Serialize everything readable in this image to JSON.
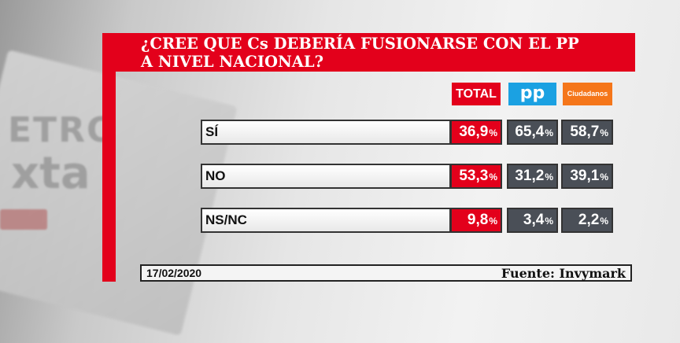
{
  "title": {
    "line1": "¿CREE QUE Cs DEBERÍA FUSIONARSE CON EL PP",
    "line2": "A NIVEL NACIONAL?"
  },
  "background": {
    "logo_line1": "ETRO",
    "logo_line2": "xta"
  },
  "headers": {
    "total": "TOTAL",
    "pp": "pp",
    "cs": "Ciudadanos"
  },
  "chart_data": {
    "type": "table",
    "title": "¿CREE QUE Cs DEBERÍA FUSIONARSE CON EL PP A NIVEL NACIONAL?",
    "columns": [
      "TOTAL",
      "pp",
      "Ciudadanos"
    ],
    "rows": [
      {
        "label": "SÍ",
        "values": [
          "36,9",
          "65,4",
          "58,7"
        ]
      },
      {
        "label": "NO",
        "values": [
          "53,3",
          "31,2",
          "39,1"
        ]
      },
      {
        "label": "NS/NC",
        "values": [
          "9,8",
          "3,4",
          "2,2"
        ]
      }
    ],
    "unit": "%"
  },
  "footer": {
    "date": "17/02/2020",
    "source": "Fuente: Invymark"
  },
  "colors": {
    "accent": "#e3001b",
    "pp": "#1ba1e2",
    "cs": "#f5761a",
    "cell": "#4a4f57"
  }
}
